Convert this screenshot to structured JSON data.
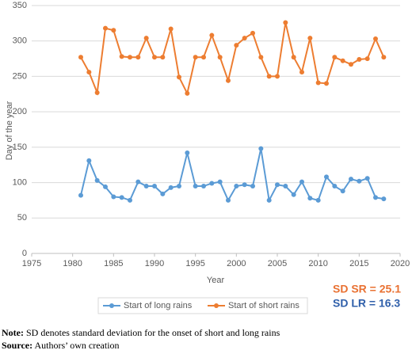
{
  "chart_data": {
    "type": "line",
    "x_label": "Year",
    "y_label": "Day of the year",
    "x": [
      1981,
      1982,
      1983,
      1984,
      1985,
      1986,
      1987,
      1988,
      1989,
      1990,
      1991,
      1992,
      1993,
      1994,
      1995,
      1996,
      1997,
      1998,
      1999,
      2000,
      2001,
      2002,
      2003,
      2004,
      2005,
      2006,
      2007,
      2008,
      2009,
      2010,
      2011,
      2012,
      2013,
      2014,
      2015,
      2016,
      2017,
      2018
    ],
    "series": [
      {
        "name": "Start of long rains",
        "color": "#5b9bd5",
        "values": [
          82,
          131,
          103,
          94,
          80,
          79,
          75,
          101,
          95,
          95,
          84,
          93,
          95,
          142,
          95,
          95,
          99,
          101,
          75,
          95,
          97,
          95,
          148,
          75,
          97,
          95,
          83,
          101,
          78,
          75,
          108,
          95,
          88,
          105,
          102,
          106,
          79,
          77
        ]
      },
      {
        "name": "Start of short rains",
        "color": "#ed7d31",
        "values": [
          277,
          256,
          227,
          318,
          315,
          278,
          277,
          277,
          304,
          277,
          277,
          317,
          249,
          226,
          277,
          277,
          308,
          277,
          244,
          294,
          304,
          311,
          277,
          250,
          250,
          326,
          277,
          256,
          304,
          241,
          240,
          277,
          272,
          267,
          274,
          275,
          303,
          277
        ]
      }
    ],
    "xlim": [
      1975,
      2020
    ],
    "xticks": [
      1975,
      1980,
      1985,
      1990,
      1995,
      2000,
      2005,
      2010,
      2015,
      2020
    ],
    "ylim": [
      0,
      350
    ],
    "yticks": [
      0,
      50,
      100,
      150,
      200,
      250,
      300,
      350
    ],
    "grid": true,
    "legend": "bottom",
    "annotations": [
      {
        "text": "SD SR = 25.1",
        "color": "#e97132"
      },
      {
        "text": "SD LR = 16.3",
        "color": "#2f5faa"
      }
    ]
  },
  "notes": [
    {
      "label": "Note:",
      "text": " SD denotes standard deviation for the onset of short and long rains"
    },
    {
      "label": "Source:",
      "text": " Authors’ own creation"
    }
  ]
}
